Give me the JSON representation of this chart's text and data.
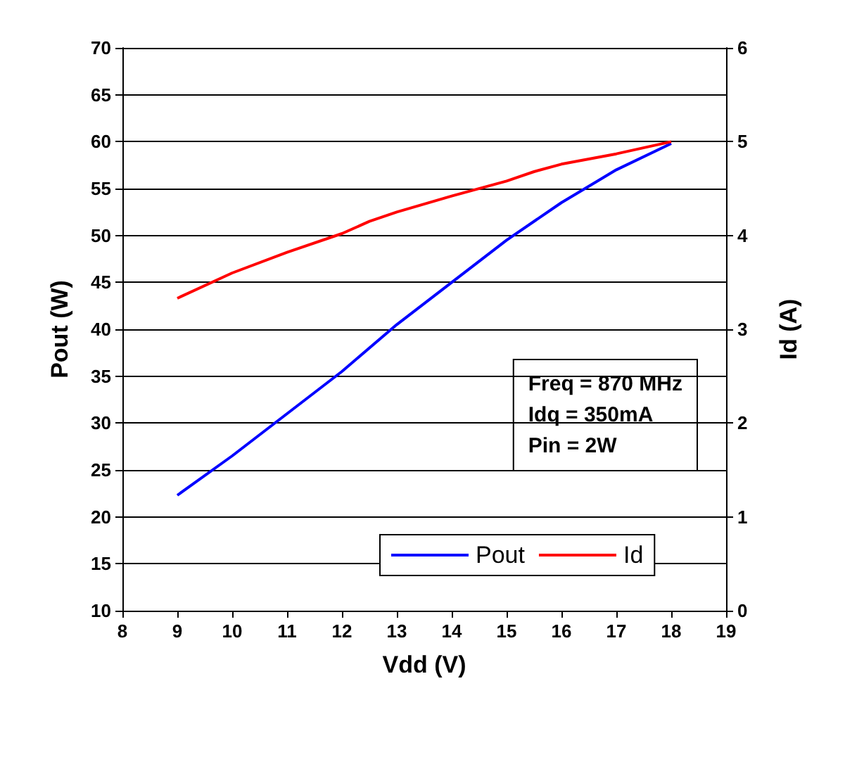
{
  "chart_data": {
    "type": "line",
    "xlabel": "Vdd (V)",
    "ylabel": "Pout (W)",
    "y2label": "Id (A)",
    "annotations": [
      "Freq = 870 MHz",
      "Idq = 350mA",
      "Pin = 2W"
    ],
    "series": [
      {
        "name": "Pout",
        "color": "#0000ff",
        "x": [
          9,
          10,
          11,
          12,
          13,
          14,
          15,
          16,
          17,
          18
        ],
        "values": [
          22.3,
          26.5,
          31,
          35.5,
          40.5,
          45,
          49.5,
          53.5,
          57,
          59.8
        ]
      },
      {
        "name": "Id",
        "color": "#ff0000",
        "axis": "y2",
        "x": [
          9,
          10,
          11,
          12,
          12.5,
          13,
          14,
          15,
          15.5,
          16,
          17,
          18
        ],
        "values": [
          3.33,
          3.6,
          3.82,
          4.02,
          4.15,
          4.25,
          4.42,
          4.58,
          4.68,
          4.76,
          4.87,
          5.0
        ]
      }
    ],
    "xlim": [
      8,
      19
    ],
    "xticks": [
      8,
      9,
      10,
      11,
      12,
      13,
      14,
      15,
      16,
      17,
      18,
      19
    ],
    "ylim": [
      10,
      70
    ],
    "yticks": [
      10,
      15,
      20,
      25,
      30,
      35,
      40,
      45,
      50,
      55,
      60,
      65,
      70
    ],
    "y2lim": [
      0,
      6
    ],
    "y2ticks": [
      0,
      1,
      2,
      3,
      4,
      5,
      6
    ],
    "grid": "y",
    "legend": "bottom",
    "marker": "none",
    "line_style": "solid"
  }
}
